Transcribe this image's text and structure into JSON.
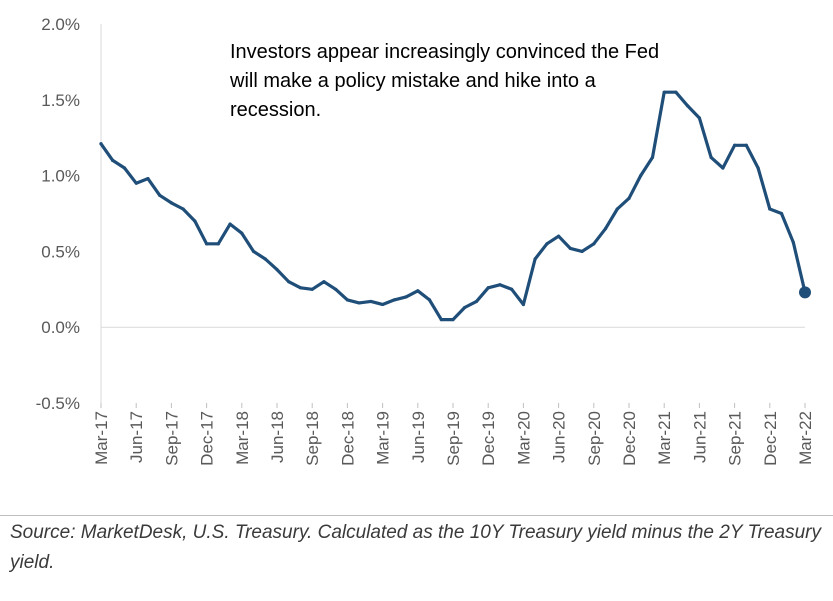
{
  "chart_data": {
    "type": "line",
    "title": "",
    "xlabel": "",
    "ylabel": "",
    "annotation": "Investors appear increasingly convinced the Fed will make a policy mistake and hike into a recession.",
    "source": "Source: MarketDesk, U.S. Treasury. Calculated as the 10Y Treasury yield minus the 2Y Treasury yield.",
    "ylim": [
      -0.5,
      2.0
    ],
    "y_ticks": [
      {
        "value": 2.0,
        "label": "2.0%"
      },
      {
        "value": 1.5,
        "label": "1.5%"
      },
      {
        "value": 1.0,
        "label": "1.0%"
      },
      {
        "value": 0.5,
        "label": "0.5%"
      },
      {
        "value": 0.0,
        "label": "0.0%"
      },
      {
        "value": -0.5,
        "label": "-0.5%"
      }
    ],
    "x_range": [
      "2017-03",
      "2022-03"
    ],
    "x_ticks": [
      "Mar-17",
      "Jun-17",
      "Sep-17",
      "Dec-17",
      "Mar-18",
      "Jun-18",
      "Sep-18",
      "Dec-18",
      "Mar-19",
      "Jun-19",
      "Sep-19",
      "Dec-19",
      "Mar-20",
      "Jun-20",
      "Sep-20",
      "Dec-20",
      "Mar-21",
      "Jun-21",
      "Sep-21",
      "Dec-21",
      "Mar-22"
    ],
    "line_color": "#1f4e79",
    "grid": false,
    "end_marker": true,
    "series": [
      {
        "x": [
          "2017-03",
          "2017-04",
          "2017-05",
          "2017-06",
          "2017-07",
          "2017-08",
          "2017-09",
          "2017-10",
          "2017-11",
          "2017-12",
          "2018-01",
          "2018-02",
          "2018-03",
          "2018-04",
          "2018-05",
          "2018-06",
          "2018-07",
          "2018-08",
          "2018-09",
          "2018-10",
          "2018-11",
          "2018-12",
          "2019-01",
          "2019-02",
          "2019-03",
          "2019-04",
          "2019-05",
          "2019-06",
          "2019-07",
          "2019-08",
          "2019-09",
          "2019-10",
          "2019-11",
          "2019-12",
          "2020-01",
          "2020-02",
          "2020-03",
          "2020-04",
          "2020-05",
          "2020-06",
          "2020-07",
          "2020-08",
          "2020-09",
          "2020-10",
          "2020-11",
          "2020-12",
          "2021-01",
          "2021-02",
          "2021-03",
          "2021-04",
          "2021-05",
          "2021-06",
          "2021-07",
          "2021-08",
          "2021-09",
          "2021-10",
          "2021-11",
          "2021-12",
          "2022-01",
          "2022-02",
          "2022-03"
        ],
        "values": [
          1.21,
          1.1,
          1.05,
          0.95,
          0.98,
          0.87,
          0.82,
          0.78,
          0.7,
          0.55,
          0.55,
          0.68,
          0.62,
          0.5,
          0.45,
          0.38,
          0.3,
          0.26,
          0.25,
          0.3,
          0.25,
          0.18,
          0.16,
          0.17,
          0.15,
          0.18,
          0.2,
          0.24,
          0.18,
          0.05,
          0.05,
          0.13,
          0.17,
          0.26,
          0.28,
          0.25,
          0.15,
          0.45,
          0.55,
          0.6,
          0.52,
          0.5,
          0.55,
          0.65,
          0.78,
          0.85,
          1.0,
          1.12,
          1.55,
          1.55,
          1.46,
          1.38,
          1.12,
          1.05,
          1.2,
          1.2,
          1.05,
          0.78,
          0.75,
          0.56,
          0.23
        ]
      }
    ]
  }
}
